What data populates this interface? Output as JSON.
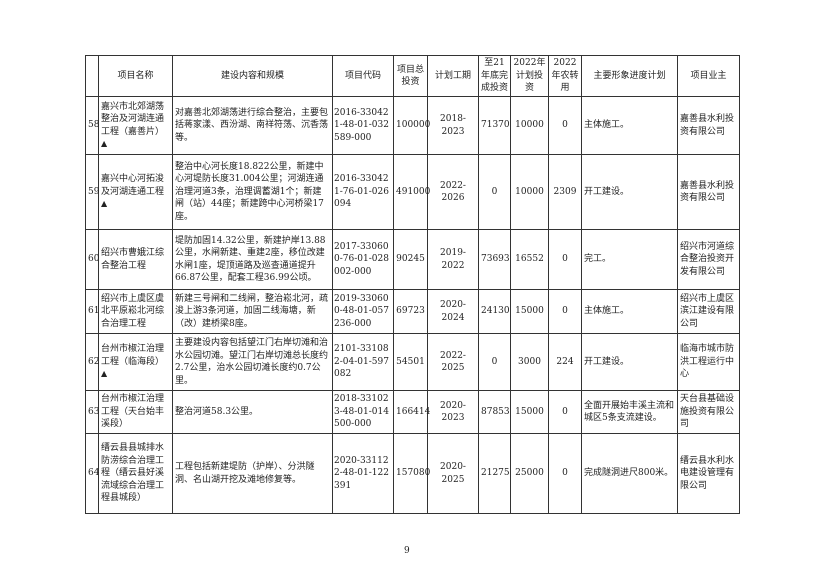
{
  "headers": [
    "",
    "项目名称",
    "建设内容和规模",
    "项目代码",
    "项目总投资",
    "计划工期",
    "至21年底完成投资",
    "2022年计划投资",
    "2022年农转用",
    "主要形象进度计划",
    "项目业主"
  ],
  "rows": [
    {
      "no": "58",
      "name": "嘉兴市北郊湖荡整治及河湖连通工程（嘉善片）",
      "mark": "▲",
      "content": "对嘉善北郊湖荡进行综合整治，主要包括蒋家漾、西汾湖、南祥符荡、沉香荡等。",
      "code": "2016-330421-48-01-032589-000",
      "total": "100000",
      "period": "2018-2023",
      "done": "71370",
      "plan": "10000",
      "land": "0",
      "progress": "主体施工。",
      "owner": "嘉善县水利投资有限公司"
    },
    {
      "no": "59",
      "name": "嘉兴中心河拓浚及河湖连通工程",
      "mark": "▲",
      "content": "整治中心河长度18.822公里，新建中心河堤防长度31.004公里；河湖连通治理河道3条，治理调蓄湖1个；新建闸（站）44座；新建跨中心河桥梁17座。",
      "code": "2016-330421-76-01-026094",
      "total": "491000",
      "period": "2022-2026",
      "done": "0",
      "plan": "10000",
      "land": "2309",
      "progress": "开工建设。",
      "owner": "嘉善县水利投资有限公司"
    },
    {
      "no": "60",
      "name": "绍兴市曹娥江综合整治工程",
      "mark": "",
      "content": "堤防加固14.32公里，新建护岸13.88公里，水闸新建、重建2座，移位改建水闸1座，堤顶道路及巡查通道提升66.87公里，配套工程36.99公顷。",
      "code": "2017-330600-76-01-028002-000",
      "total": "90245",
      "period": "2019-2022",
      "done": "73693",
      "plan": "16552",
      "land": "0",
      "progress": "完工。",
      "owner": "绍兴市河道综合整治投资开发有限公司"
    },
    {
      "no": "61",
      "name": "绍兴市上虞区虞北平原崧北河综合治理工程",
      "mark": "",
      "content": "新建三号闸和二线闸，整治崧北河，疏浚上游3条河道，加固二线海塘，新（改）建桥梁8座。",
      "code": "2019-330600-48-01-057236-000",
      "total": "69723",
      "period": "2020-2024",
      "done": "24130",
      "plan": "15000",
      "land": "0",
      "progress": "主体施工。",
      "owner": "绍兴市上虞区滨江建设有限公司"
    },
    {
      "no": "62",
      "name": "台州市椒江治理工程（临海段）",
      "mark": "▲",
      "content": "主要建设内容包括望江门右岸切滩和治水公园切滩。望江门右岸切滩总长度约2.7公里，治水公园切滩长度约0.7公里。",
      "code": "2101-331082-04-01-597082",
      "total": "54501",
      "period": "2022-2025",
      "done": "0",
      "plan": "3000",
      "land": "224",
      "progress": "开工建设。",
      "owner": "临海市城市防洪工程运行中心"
    },
    {
      "no": "63",
      "name": "台州市椒江治理工程（天台始丰溪段）",
      "mark": "",
      "content": "整治河道58.3公里。",
      "code": "2018-331023-48-01-014500-000",
      "total": "166414",
      "period": "2020-2023",
      "done": "87853",
      "plan": "15000",
      "land": "0",
      "progress": "全面开展始丰溪主流和城区5条支流建设。",
      "owner": "天台县基础设施投资有限公司"
    },
    {
      "no": "64",
      "name": "缙云县县城排水防涝综合治理工程（缙云县好溪流域综合治理工程县城段）",
      "mark": "",
      "content": "工程包括新建堤防（护岸）、分洪隧洞、名山湖开挖及滩地修复等。",
      "code": "2020-331122-48-01-122391",
      "total": "157080",
      "period": "2020-2025",
      "done": "21275",
      "plan": "25000",
      "land": "0",
      "progress": "完成隧洞进尺800米。",
      "owner": "缙云县水利水电建设管理有限公司"
    }
  ],
  "page_number": "9"
}
